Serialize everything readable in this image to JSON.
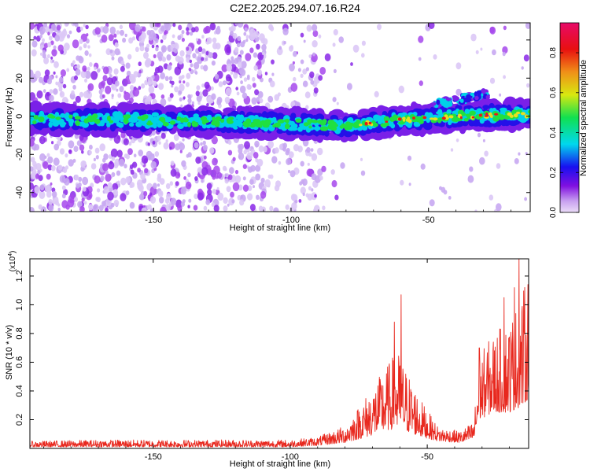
{
  "title": "C2E2.2025.294.07.16.R24",
  "chart_data": [
    {
      "type": "heatmap",
      "name": "spectrogram",
      "xlabel": "Height of straight line (km)",
      "ylabel": "Frequency (Hz)",
      "xlim": [
        -195,
        -13
      ],
      "ylim": [
        -50,
        49
      ],
      "xticks": [
        -150,
        -100,
        -50
      ],
      "xtick_labels": [
        "-150",
        "-100",
        "-50"
      ],
      "yticks": [
        -40,
        -20,
        0,
        20,
        40
      ],
      "ytick_labels": [
        "-40",
        "-20",
        "0",
        "20",
        "40"
      ],
      "colorbar": {
        "label": "Normalized spectral amplitude",
        "range": [
          0,
          0.95
        ],
        "ticks": [
          0,
          0.2,
          0.4,
          0.6,
          0.8
        ],
        "tick_labels": [
          "0.0",
          "0.2",
          "0.4",
          "0.6",
          "0.8"
        ],
        "colormap": [
          "#e8d8f8",
          "#a030e8",
          "#2010e0",
          "#00d8e8",
          "#10e030",
          "#e8e810",
          "#f08010",
          "#e80a10",
          "#e80a60"
        ]
      },
      "description_band": [
        {
          "x": -195,
          "center_hz": -1.5
        },
        {
          "x": -150,
          "center_hz": -2
        },
        {
          "x": -100,
          "center_hz": -4
        },
        {
          "x": -80,
          "center_hz": -5
        },
        {
          "x": -60,
          "center_hz": -2
        },
        {
          "x": -40,
          "center_hz": 0
        },
        {
          "x": -13,
          "center_hz": 1
        }
      ]
    },
    {
      "type": "line",
      "name": "snr",
      "xlabel": "Height of straight line (km)",
      "ylabel": "SNR (10 * v/v)",
      "y_multiplier": "(x10",
      "y_multiplier_exp": "4",
      "y_multiplier_close": ")",
      "xlim": [
        -195,
        -13
      ],
      "ylim": [
        0,
        1.32
      ],
      "xticks": [
        -150,
        -100,
        -50
      ],
      "xtick_labels": [
        "-150",
        "-100",
        "-50"
      ],
      "yticks": [
        0.2,
        0.4,
        0.6,
        0.8,
        1.0,
        1.2
      ],
      "ytick_labels": [
        "0.2",
        "0.4",
        "0.6",
        "0.8",
        "1.0",
        "1.2"
      ],
      "series": [
        {
          "name": "SNR",
          "color": "#e8281e",
          "envelope": [
            {
              "x": -195,
              "base": 0.01,
              "amp": 0.04
            },
            {
              "x": -170,
              "base": 0.01,
              "amp": 0.05
            },
            {
              "x": -100,
              "base": 0.01,
              "amp": 0.05
            },
            {
              "x": -90,
              "base": 0.02,
              "amp": 0.06
            },
            {
              "x": -80,
              "base": 0.04,
              "amp": 0.12
            },
            {
              "x": -72,
              "base": 0.08,
              "amp": 0.3
            },
            {
              "x": -66,
              "base": 0.12,
              "amp": 0.42
            },
            {
              "x": -61,
              "base": 0.14,
              "amp": 0.55
            },
            {
              "x": -58,
              "base": 0.12,
              "amp": 0.45
            },
            {
              "x": -52,
              "base": 0.08,
              "amp": 0.25
            },
            {
              "x": -46,
              "base": 0.05,
              "amp": 0.1
            },
            {
              "x": -38,
              "base": 0.04,
              "amp": 0.08
            },
            {
              "x": -33,
              "base": 0.06,
              "amp": 0.13
            },
            {
              "x": -31,
              "base": 0.2,
              "amp": 0.45
            },
            {
              "x": -26,
              "base": 0.25,
              "amp": 0.55
            },
            {
              "x": -20,
              "base": 0.25,
              "amp": 0.65
            },
            {
              "x": -15,
              "base": 0.3,
              "amp": 0.8
            },
            {
              "x": -13,
              "base": 0.35,
              "amp": 0.9
            }
          ],
          "peaks": [
            {
              "x": -59.5,
              "y": 1.07
            },
            {
              "x": -16.5,
              "y": 1.32
            },
            {
              "x": -18.2,
              "y": 1.12
            },
            {
              "x": -22.0,
              "y": 1.05
            },
            {
              "x": -31.0,
              "y": 0.7
            },
            {
              "x": -62.0,
              "y": 0.88
            }
          ]
        }
      ]
    }
  ]
}
